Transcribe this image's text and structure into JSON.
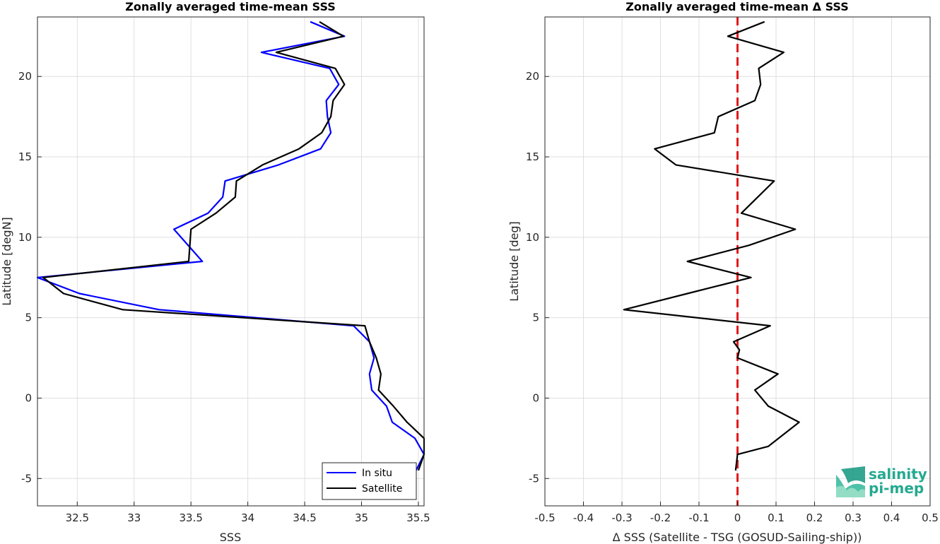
{
  "chart_data": [
    {
      "type": "line",
      "title": "Zonally averaged time-mean SSS",
      "xlabel": "SSS",
      "ylabel": "Latitude [degN]",
      "xlim": [
        32.15,
        35.55
      ],
      "ylim": [
        -6.7,
        23.7
      ],
      "xticks": [
        "32.5",
        "33",
        "33.5",
        "34",
        "34.5",
        "35",
        "35.5"
      ],
      "xtick_values": [
        32.5,
        33,
        33.5,
        34,
        34.5,
        35,
        35.5
      ],
      "yticks": [
        "-5",
        "0",
        "5",
        "10",
        "15",
        "20"
      ],
      "ytick_values": [
        -5,
        0,
        5,
        10,
        15,
        20
      ],
      "grid": true,
      "legend": "bottom-right",
      "series": [
        {
          "name": "In situ",
          "color": "#0000ff",
          "points": [
            [
              35.48,
              -4.5
            ],
            [
              35.55,
              -3.5
            ],
            [
              35.47,
              -2.5
            ],
            [
              35.27,
              -1.5
            ],
            [
              35.22,
              -0.5
            ],
            [
              35.09,
              0.5
            ],
            [
              35.07,
              1.5
            ],
            [
              35.11,
              2.5
            ],
            [
              35.07,
              3.5
            ],
            [
              34.93,
              4.5
            ],
            [
              33.22,
              5.5
            ],
            [
              32.52,
              6.5
            ],
            [
              32.15,
              7.5
            ],
            [
              33.6,
              8.5
            ],
            [
              33.35,
              10.5
            ],
            [
              33.65,
              11.5
            ],
            [
              33.78,
              12.5
            ],
            [
              33.8,
              13.5
            ],
            [
              34.27,
              14.5
            ],
            [
              34.64,
              15.5
            ],
            [
              34.73,
              16.5
            ],
            [
              34.7,
              17.5
            ],
            [
              34.69,
              18.5
            ],
            [
              34.8,
              19.5
            ],
            [
              34.72,
              20.5
            ],
            [
              34.12,
              21.5
            ],
            [
              34.85,
              22.5
            ],
            [
              34.55,
              23.4
            ]
          ]
        },
        {
          "name": "Satellite",
          "color": "#000000",
          "points": [
            [
              35.5,
              -4.5
            ],
            [
              35.55,
              -3.5
            ],
            [
              35.55,
              -2.5
            ],
            [
              35.4,
              -1.5
            ],
            [
              35.28,
              -0.5
            ],
            [
              35.15,
              0.5
            ],
            [
              35.17,
              1.5
            ],
            [
              35.13,
              2.5
            ],
            [
              35.07,
              3.5
            ],
            [
              35.03,
              4.5
            ],
            [
              32.9,
              5.5
            ],
            [
              32.38,
              6.5
            ],
            [
              32.2,
              7.5
            ],
            [
              33.48,
              8.5
            ],
            [
              33.5,
              10.5
            ],
            [
              33.72,
              11.5
            ],
            [
              33.89,
              12.5
            ],
            [
              33.9,
              13.5
            ],
            [
              34.13,
              14.5
            ],
            [
              34.45,
              15.5
            ],
            [
              34.65,
              16.5
            ],
            [
              34.73,
              17.5
            ],
            [
              34.75,
              18.5
            ],
            [
              34.85,
              19.5
            ],
            [
              34.77,
              20.5
            ],
            [
              34.25,
              21.5
            ],
            [
              34.84,
              22.5
            ],
            [
              34.63,
              23.4
            ]
          ]
        }
      ]
    },
    {
      "type": "line",
      "title": "Zonally averaged time-mean Δ SSS",
      "xlabel": "Δ SSS (Satellite - TSG (GOSUD-Sailing-ship))",
      "ylabel": "Latitude [deg]",
      "xlim": [
        -0.5,
        0.5
      ],
      "ylim": [
        -6.7,
        23.7
      ],
      "xticks": [
        "-0.5",
        "-0.4",
        "-0.3",
        "-0.2",
        "-0.1",
        "0",
        "0.1",
        "0.2",
        "0.3",
        "0.4",
        "0.5"
      ],
      "xtick_values": [
        -0.5,
        -0.4,
        -0.3,
        -0.2,
        -0.1,
        0,
        0.1,
        0.2,
        0.3,
        0.4,
        0.5
      ],
      "yticks": [
        "-5",
        "0",
        "5",
        "10",
        "15",
        "20"
      ],
      "ytick_values": [
        -5,
        0,
        5,
        10,
        15,
        20
      ],
      "grid": true,
      "reference_line": {
        "x": 0,
        "color": "#e31a1c",
        "style": "dashed"
      },
      "series": [
        {
          "color": "#000000",
          "points": [
            [
              -0.005,
              -4.5
            ],
            [
              0,
              -3.5
            ],
            [
              0.08,
              -3.0
            ],
            [
              0.16,
              -1.5
            ],
            [
              0.08,
              -0.5
            ],
            [
              0.045,
              0.5
            ],
            [
              0.105,
              1.5
            ],
            [
              0,
              2.5
            ],
            [
              0.005,
              3.0
            ],
            [
              -0.01,
              3.5
            ],
            [
              0.085,
              4.5
            ],
            [
              -0.295,
              5.5
            ],
            [
              -0.13,
              6.5
            ],
            [
              0.035,
              7.5
            ],
            [
              -0.13,
              8.5
            ],
            [
              0.03,
              9.5
            ],
            [
              0.15,
              10.5
            ],
            [
              0.01,
              11.5
            ],
            [
              0.095,
              13.5
            ],
            [
              -0.16,
              14.5
            ],
            [
              -0.215,
              15.5
            ],
            [
              -0.06,
              16.5
            ],
            [
              -0.05,
              17.5
            ],
            [
              0.045,
              18.5
            ],
            [
              0.06,
              19.5
            ],
            [
              0.055,
              20.5
            ],
            [
              0.12,
              21.5
            ],
            [
              -0.025,
              22.5
            ],
            [
              0.07,
              23.4
            ]
          ]
        }
      ]
    }
  ],
  "legend": {
    "in_situ": "In situ",
    "satellite": "Satellite"
  },
  "logo": {
    "line1": "salinity",
    "line2": "pi-mep"
  }
}
